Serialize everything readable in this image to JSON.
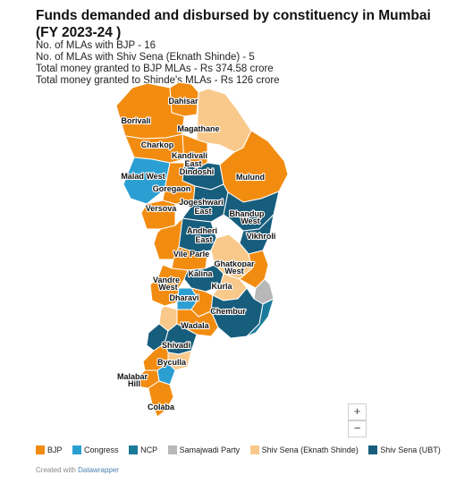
{
  "title": "Funds demanded and disbursed by constituency in Mumbai (FY 2023-24 )",
  "notes": [
    "No. of MLAs with BJP - 16",
    "No. of MLAs with Shiv Sena (Eknath Shinde) - 5",
    "Total money granted to BJP MLAs - Rs 374.58 crore",
    "Total money granted to Shinde's MLAs - Rs 126 crore"
  ],
  "zoom": {
    "in_label": "+",
    "out_label": "−"
  },
  "legend": [
    {
      "key": "bjp",
      "label": "BJP",
      "color": "#f28c10"
    },
    {
      "key": "congress",
      "label": "Congress",
      "color": "#2c9fd2"
    },
    {
      "key": "ncp",
      "label": "NCP",
      "color": "#1b7a9a"
    },
    {
      "key": "sp",
      "label": "Samajwadi Party",
      "color": "#b8b8b8"
    },
    {
      "key": "ss_shinde",
      "label": "Shiv Sena (Eknath Shinde)",
      "color": "#f9c98b"
    },
    {
      "key": "ss_ubt",
      "label": "Shiv Sena (UBT)",
      "color": "#175d7c"
    }
  ],
  "labels": [
    "Dahisar",
    "Borivali",
    "Magathane",
    "Charkop",
    "Kandivali East",
    "Dindoshi",
    "Malad West",
    "Mulund",
    "Goregaon",
    "Versova",
    "Jogeshwari East",
    "Bhandup West",
    "Vikhroli",
    "Andheri East",
    "Vile Parle",
    "Ghatkopar West",
    "Kalina",
    "Vandre West",
    "Kurla",
    "Dharavi",
    "Chembur",
    "Wadala",
    "Shivadi",
    "Byculla",
    "Malabar Hill",
    "Colaba"
  ],
  "credit": {
    "prefix": "Created with",
    "link": "Datawrapper"
  }
}
